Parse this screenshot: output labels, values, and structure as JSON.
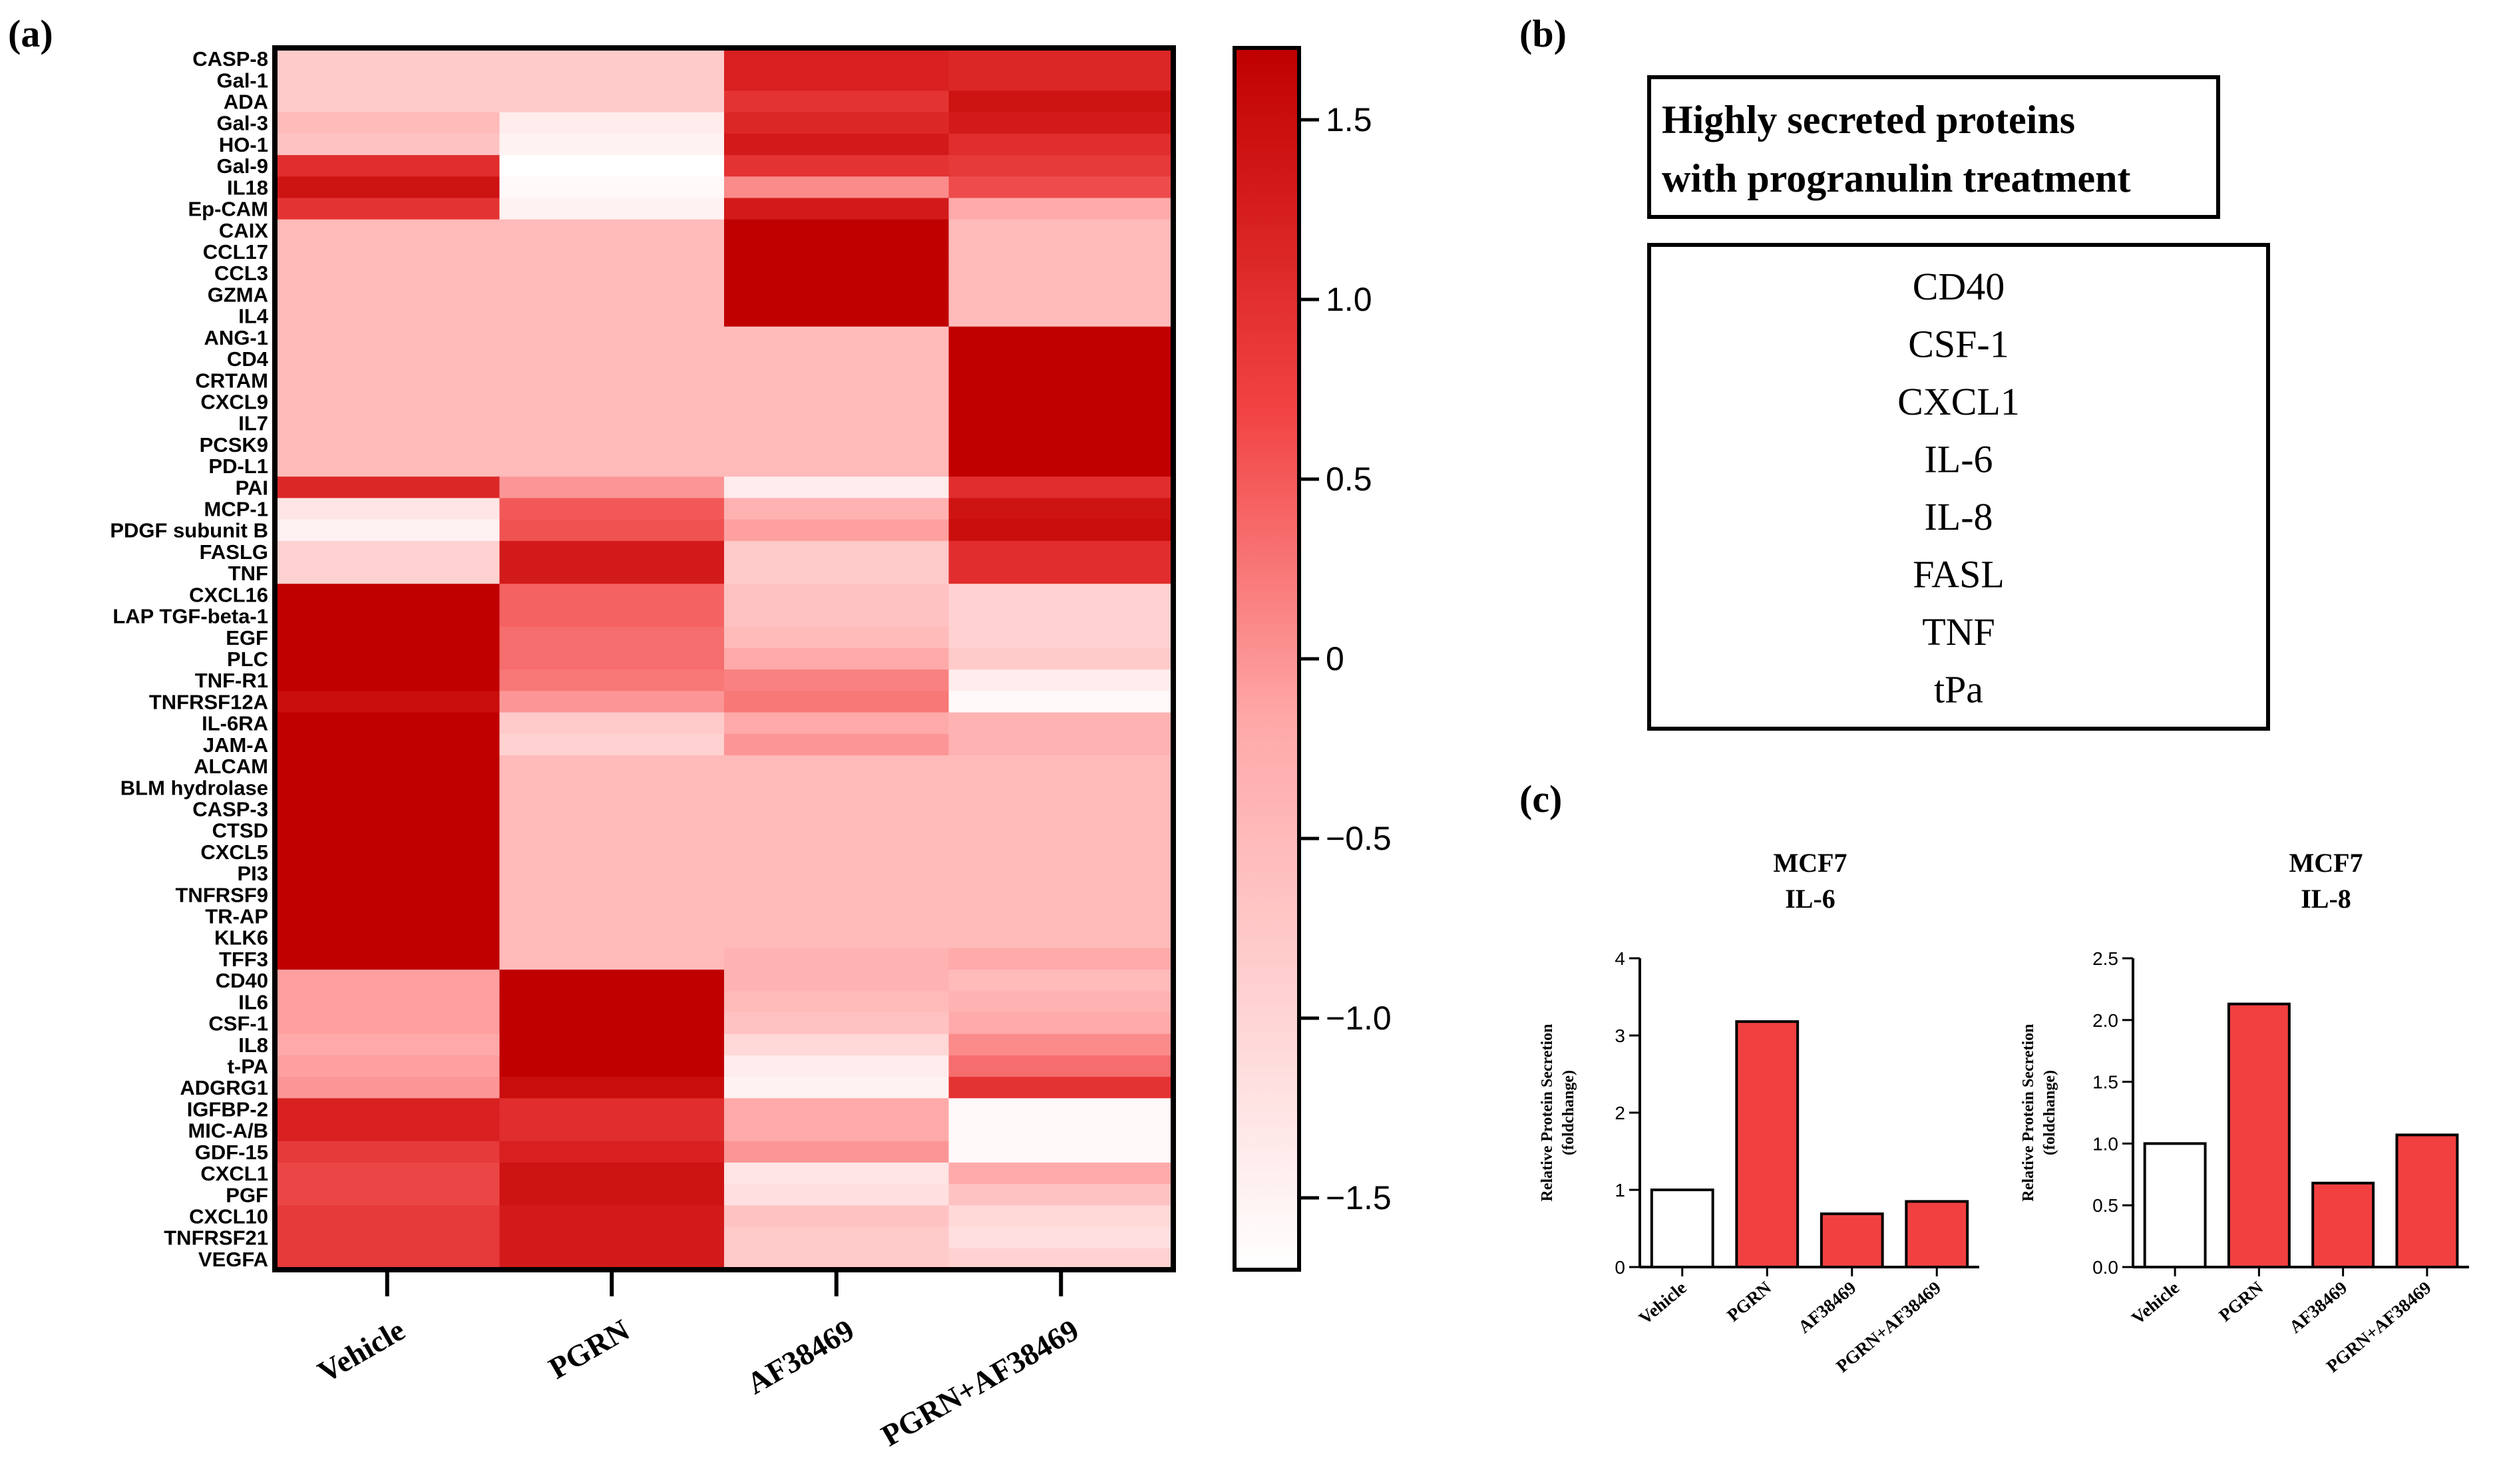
{
  "panels": {
    "a": "(a)",
    "b": "(b)",
    "c": "(c)"
  },
  "secreted_box": {
    "title_line1": "Highly secreted proteins",
    "title_line2": "with progranulin treatment",
    "proteins": [
      "CD40",
      "CSF-1",
      "CXCL1",
      "IL-6",
      "IL-8",
      "FASL",
      "TNF",
      "tPa"
    ]
  },
  "colors": {
    "high": "#c00000",
    "mid": "#ffb3b3",
    "low": "#ffffff",
    "bar_red": "#f24040",
    "bar_white": "#ffffff"
  },
  "chart_data": [
    {
      "type": "heatmap",
      "title": "",
      "columns": [
        "Vehicle",
        "PGRN",
        "AF38469",
        "PGRN+AF38469"
      ],
      "rows": [
        "CASP-8",
        "Gal-1",
        "ADA",
        "Gal-3",
        "HO-1",
        "Gal-9",
        "IL18",
        "Ep-CAM",
        "CAIX",
        "CCL17",
        "CCL3",
        "GZMA",
        "IL4",
        "ANG-1",
        "CD4",
        "CRTAM",
        "CXCL9",
        "IL7",
        "PCSK9",
        "PD-L1",
        "PAI",
        "MCP-1",
        "PDGF subunit B",
        "FASLG",
        "TNF",
        "CXCL16",
        "LAP TGF-beta-1",
        "EGF",
        "PLC",
        "TNF-R1",
        "TNFRSF12A",
        "IL-6RA",
        "JAM-A",
        "ALCAM",
        "BLM hydrolase",
        "CASP-3",
        "CTSD",
        "CXCL5",
        "PI3",
        "TNFRSF9",
        "TR-AP",
        "KLK6",
        "TFF3",
        "CD40",
        "IL6",
        "CSF-1",
        "IL8",
        "t-PA",
        "ADGRG1",
        "IGFBP-2",
        "MIC-A/B",
        "GDF-15",
        "CXCL1",
        "PGF",
        "CXCL10",
        "TNFRSF21",
        "VEGFA"
      ],
      "values": [
        [
          -0.9,
          -0.9,
          1.2,
          1.1
        ],
        [
          -0.9,
          -0.9,
          1.2,
          1.1
        ],
        [
          -0.9,
          -0.9,
          0.9,
          1.4
        ],
        [
          -0.7,
          -1.4,
          1.1,
          1.3
        ],
        [
          -0.8,
          -1.5,
          1.3,
          1.0
        ],
        [
          1.0,
          -1.7,
          0.9,
          0.8
        ],
        [
          1.4,
          -1.6,
          -0.2,
          0.5
        ],
        [
          0.9,
          -1.5,
          1.3,
          -0.5
        ],
        [
          -0.7,
          -0.7,
          1.7,
          -0.7
        ],
        [
          -0.7,
          -0.7,
          1.7,
          -0.7
        ],
        [
          -0.7,
          -0.7,
          1.7,
          -0.7
        ],
        [
          -0.7,
          -0.7,
          1.7,
          -0.7
        ],
        [
          -0.7,
          -0.7,
          1.7,
          -0.7
        ],
        [
          -0.7,
          -0.7,
          -0.7,
          1.7
        ],
        [
          -0.7,
          -0.7,
          -0.7,
          1.7
        ],
        [
          -0.7,
          -0.7,
          -0.7,
          1.7
        ],
        [
          -0.7,
          -0.7,
          -0.7,
          1.7
        ],
        [
          -0.7,
          -0.7,
          -0.7,
          1.7
        ],
        [
          -0.7,
          -0.7,
          -0.7,
          1.7
        ],
        [
          -0.7,
          -0.7,
          -0.7,
          1.7
        ],
        [
          1.1,
          -0.3,
          -1.4,
          1.0
        ],
        [
          -1.3,
          0.3,
          -0.6,
          1.4
        ],
        [
          -1.5,
          0.4,
          -0.4,
          1.5
        ],
        [
          -1.0,
          1.3,
          -0.9,
          1.0
        ],
        [
          -1.0,
          1.3,
          -0.9,
          1.0
        ],
        [
          1.7,
          0.2,
          -0.8,
          -1.0
        ],
        [
          1.7,
          0.2,
          -0.8,
          -1.0
        ],
        [
          1.7,
          0.1,
          -0.7,
          -1.0
        ],
        [
          1.7,
          0.1,
          -0.5,
          -0.9
        ],
        [
          1.7,
          0.0,
          -0.1,
          -1.4
        ],
        [
          1.5,
          -0.3,
          0.0,
          -1.6
        ],
        [
          1.7,
          -0.9,
          -0.5,
          -0.6
        ],
        [
          1.7,
          -1.0,
          -0.3,
          -0.6
        ],
        [
          1.7,
          -0.7,
          -0.7,
          -0.7
        ],
        [
          1.7,
          -0.7,
          -0.7,
          -0.7
        ],
        [
          1.7,
          -0.7,
          -0.7,
          -0.7
        ],
        [
          1.7,
          -0.7,
          -0.7,
          -0.7
        ],
        [
          1.7,
          -0.7,
          -0.7,
          -0.7
        ],
        [
          1.7,
          -0.7,
          -0.7,
          -0.7
        ],
        [
          1.7,
          -0.7,
          -0.7,
          -0.7
        ],
        [
          1.7,
          -0.7,
          -0.7,
          -0.7
        ],
        [
          1.7,
          -0.7,
          -0.7,
          -0.7
        ],
        [
          1.7,
          -0.7,
          -0.6,
          -0.5
        ],
        [
          -0.4,
          1.7,
          -0.6,
          -0.7
        ],
        [
          -0.4,
          1.7,
          -0.7,
          -0.6
        ],
        [
          -0.4,
          1.7,
          -0.8,
          -0.5
        ],
        [
          -0.5,
          1.7,
          -1.1,
          -0.2
        ],
        [
          -0.4,
          1.7,
          -1.4,
          0.1
        ],
        [
          -0.3,
          1.5,
          -1.5,
          0.9
        ],
        [
          1.2,
          1.0,
          -0.5,
          -1.6
        ],
        [
          1.2,
          1.0,
          -0.5,
          -1.6
        ],
        [
          0.8,
          1.2,
          -0.3,
          -1.6
        ],
        [
          0.6,
          1.4,
          -1.3,
          -0.5
        ],
        [
          0.6,
          1.4,
          -1.2,
          -0.8
        ],
        [
          0.8,
          1.3,
          -0.8,
          -1.1
        ],
        [
          0.8,
          1.3,
          -0.9,
          -1.2
        ],
        [
          0.8,
          1.3,
          -0.9,
          -1.0
        ]
      ],
      "colorbar": {
        "range": [
          -1.7,
          1.7
        ],
        "ticks": [
          1.5,
          1.0,
          0.5,
          0,
          -0.5,
          -1.0,
          -1.5
        ],
        "tick_labels": [
          "1.5",
          "1.0",
          "0.5",
          "0",
          "−0.5",
          "−1.0",
          "−1.5"
        ]
      }
    },
    {
      "type": "bar",
      "title_line1": "MCF7",
      "title_line2": "IL-6",
      "categories": [
        "Vehicle",
        "PGRN",
        "AF38469",
        "PGRN+AF38469"
      ],
      "values": [
        1.0,
        3.18,
        0.69,
        0.85
      ],
      "ylabel_line1": "Relative Protein Secretion",
      "ylabel_line2": "(foldchange)",
      "ylim": [
        0,
        4
      ],
      "ticks": [
        0,
        1,
        2,
        3,
        4
      ],
      "tick_labels": [
        "0",
        "1",
        "2",
        "3",
        "4"
      ]
    },
    {
      "type": "bar",
      "title_line1": "MCF7",
      "title_line2": "IL-8",
      "categories": [
        "Vehicle",
        "PGRN",
        "AF38469",
        "PGRN+AF38469"
      ],
      "values": [
        1.0,
        2.13,
        0.68,
        1.07
      ],
      "ylabel_line1": "Relative Protein Secretion",
      "ylabel_line2": "(foldchange)",
      "ylim": [
        0,
        2.5
      ],
      "ticks": [
        0,
        0.5,
        1.0,
        1.5,
        2.0,
        2.5
      ],
      "tick_labels": [
        "0.0",
        "0.5",
        "1.0",
        "1.5",
        "2.0",
        "2.5"
      ]
    }
  ]
}
